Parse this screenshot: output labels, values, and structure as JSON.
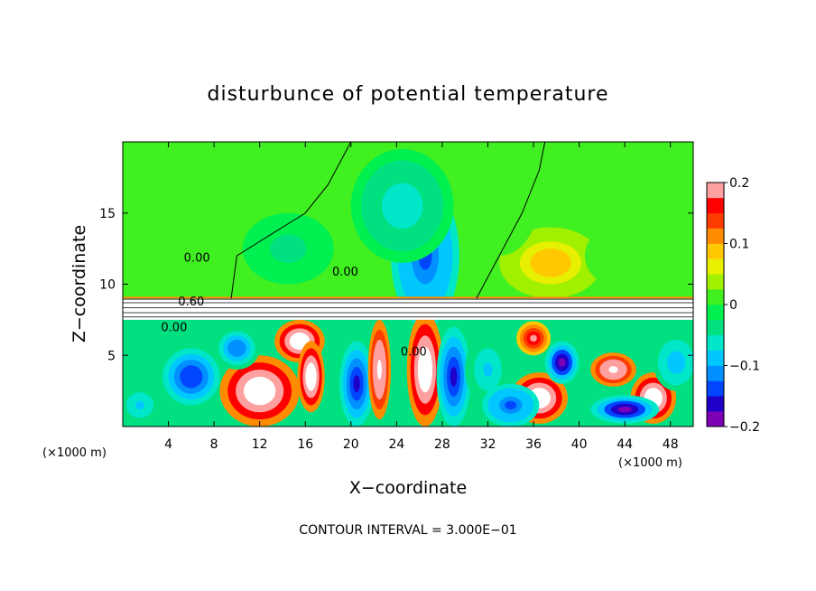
{
  "chart_data": {
    "type": "heatmap",
    "title": "disturbunce of potential temperature",
    "xlabel": "X−coordinate",
    "ylabel": "Z−coordinate",
    "x_unit_label_left": "(×1000 m)",
    "x_unit_label_right": "(×1000 m)",
    "footer": "CONTOUR INTERVAL = 3.000E−01",
    "xlim": [
      0,
      50
    ],
    "ylim": [
      0,
      20
    ],
    "x_ticks": [
      4,
      8,
      12,
      16,
      20,
      24,
      28,
      32,
      36,
      40,
      44,
      48
    ],
    "y_ticks": [
      5,
      10,
      15
    ],
    "colorbar": {
      "range": [
        -0.2,
        0.2
      ],
      "tick_values": [
        0.2,
        0.1,
        0,
        -0.1,
        -0.2
      ],
      "tick_labels": [
        "0.2",
        "0.1",
        "0",
        "−0.1",
        "−0.2"
      ],
      "colors": [
        "#7d00b4",
        "#1e00c8",
        "#0046ff",
        "#0090ff",
        "#00c8ff",
        "#00e6c8",
        "#00e080",
        "#00f050",
        "#40f020",
        "#a0f000",
        "#e6f000",
        "#ffc800",
        "#ff8c00",
        "#ff3c00",
        "#ff0000",
        "#ffa0a0"
      ]
    },
    "contour_labels": [
      {
        "text": "0.60",
        "x": 6.0,
        "y": 8.5
      },
      {
        "text": "0.00",
        "x": 6.5,
        "y": 11.6
      },
      {
        "text": "0.00",
        "x": 19.5,
        "y": 10.6
      },
      {
        "text": "0.00",
        "x": 4.5,
        "y": 6.7
      },
      {
        "text": "0.00",
        "x": 25.5,
        "y": 5.0
      }
    ],
    "field": {
      "description_regions": [
        {
          "name": "upper-background",
          "z_range": [
            9,
            20
          ],
          "level": 0.0
        }
      ],
      "anomalies": [
        {
          "x": 26.5,
          "z": 12.0,
          "rx": 3.0,
          "rz": 5.0,
          "value": -0.14
        },
        {
          "x": 24.5,
          "z": 15.5,
          "rx": 4.5,
          "rz": 4.0,
          "value": -0.06
        },
        {
          "x": 14.5,
          "z": 12.5,
          "rx": 4.0,
          "rz": 2.5,
          "value": -0.03
        },
        {
          "x": 37.5,
          "z": 11.5,
          "rx": 4.5,
          "rz": 2.5,
          "value": 0.09
        },
        {
          "x": 43.0,
          "z": 12.0,
          "rx": 2.5,
          "rz": 2.0,
          "value": 0.02
        },
        {
          "x": 3.0,
          "z": 16.0,
          "rx": 3.0,
          "rz": 4.0,
          "value": 0.02
        },
        {
          "x": 33.0,
          "z": 16.0,
          "rx": 3.5,
          "rz": 4.0,
          "value": 0.02
        },
        {
          "x": 12.0,
          "z": 2.5,
          "rx": 3.5,
          "rz": 2.5,
          "value": 0.3
        },
        {
          "x": 15.5,
          "z": 6.0,
          "rx": 2.2,
          "rz": 1.5,
          "value": 0.3
        },
        {
          "x": 16.5,
          "z": 3.5,
          "rx": 1.2,
          "rz": 2.5,
          "value": 0.3
        },
        {
          "x": 6.0,
          "z": 3.5,
          "rx": 2.5,
          "rz": 2.0,
          "value": -0.15
        },
        {
          "x": 10.0,
          "z": 5.5,
          "rx": 2.0,
          "rz": 1.5,
          "value": -0.12
        },
        {
          "x": 20.5,
          "z": 3.0,
          "rx": 1.5,
          "rz": 3.0,
          "value": -0.16
        },
        {
          "x": 22.5,
          "z": 4.0,
          "rx": 1.0,
          "rz": 3.5,
          "value": 0.25
        },
        {
          "x": 26.5,
          "z": 4.0,
          "rx": 1.6,
          "rz": 4.0,
          "value": 0.3
        },
        {
          "x": 29.0,
          "z": 3.5,
          "rx": 1.5,
          "rz": 3.5,
          "value": -0.16
        },
        {
          "x": 32.0,
          "z": 4.0,
          "rx": 2.0,
          "rz": 2.5,
          "value": -0.08
        },
        {
          "x": 36.5,
          "z": 2.0,
          "rx": 2.5,
          "rz": 1.8,
          "value": 0.3
        },
        {
          "x": 38.5,
          "z": 4.5,
          "rx": 1.5,
          "rz": 1.5,
          "value": -0.18
        },
        {
          "x": 36.0,
          "z": 6.2,
          "rx": 1.5,
          "rz": 1.2,
          "value": 0.2
        },
        {
          "x": 43.0,
          "z": 4.0,
          "rx": 2.0,
          "rz": 1.2,
          "value": 0.25
        },
        {
          "x": 46.5,
          "z": 2.0,
          "rx": 2.0,
          "rz": 1.8,
          "value": 0.3
        },
        {
          "x": 44.0,
          "z": 1.2,
          "rx": 3.0,
          "rz": 1.0,
          "value": -0.18
        },
        {
          "x": 48.5,
          "z": 4.5,
          "rx": 2.0,
          "rz": 2.0,
          "value": -0.1
        },
        {
          "x": 1.5,
          "z": 1.5,
          "rx": 2.0,
          "rz": 1.5,
          "value": -0.08
        },
        {
          "x": 34.0,
          "z": 1.5,
          "rx": 2.5,
          "rz": 1.5,
          "value": -0.14
        }
      ],
      "tropopause_band": {
        "z_range": [
          7.5,
          9.0
        ],
        "value": 0.3
      }
    }
  }
}
